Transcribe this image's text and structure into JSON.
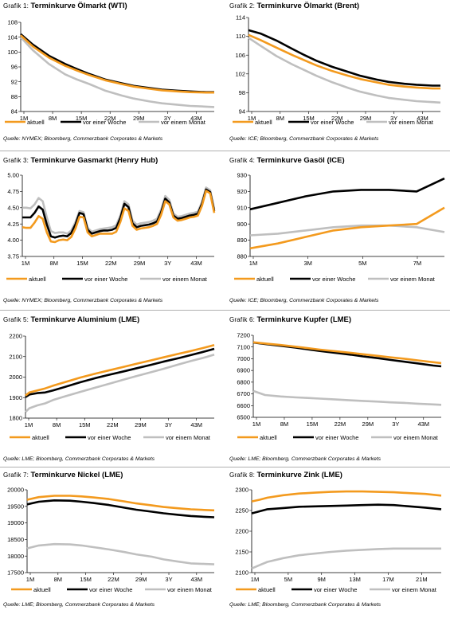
{
  "colors": {
    "aktuell": "#f39a1e",
    "woche": "#000000",
    "monat": "#bfbfbf"
  },
  "legend": {
    "aktuell": "aktuell",
    "woche": "vor einer Woche",
    "monat": "vor einem Monat"
  },
  "charts": [
    {
      "id": "chart1",
      "prefix": "Grafik 1: ",
      "title": "Terminkurve Ölmarkt (WTI)",
      "source": "Quelle: NYMEX; Bloomberg, Commerzbank Corporates & Markets",
      "x_ticks": [
        "1M",
        "8M",
        "15M",
        "22M",
        "29M",
        "3Y",
        "43M"
      ],
      "y_ticks": [
        "84",
        "88",
        "92",
        "96",
        "100",
        "104",
        "108"
      ]
    },
    {
      "id": "chart2",
      "prefix": "Grafik 2: ",
      "title": "Terminkurve Ölmarkt (Brent)",
      "source": "Quelle: ICE; Bloomberg, Commerzbank Corporates & Markets",
      "x_ticks": [
        "1M",
        "8M",
        "15M",
        "22M",
        "29M",
        "3Y",
        "43M"
      ],
      "y_ticks": [
        "94",
        "98",
        "102",
        "106",
        "110",
        "114"
      ]
    },
    {
      "id": "chart3",
      "prefix": "Grafik 3: ",
      "title": "Terminkurve Gasmarkt (Henry Hub)",
      "source": "Quelle: NYMEX; Bloomberg, Commerzbank Corporates & Markets",
      "x_ticks": [
        "1M",
        "8M",
        "15M",
        "22M",
        "29M",
        "3Y",
        "43M"
      ],
      "y_ticks": [
        "3.75",
        "4.00",
        "4.25",
        "4.50",
        "4.75",
        "5.00"
      ]
    },
    {
      "id": "chart4",
      "prefix": "Grafik 4: ",
      "title": "Terminkurve Gasöl (ICE)",
      "source": "Quelle: ICE; Bloomberg, Commerzbank Corporates & Markets",
      "x_ticks": [
        "1M",
        "3M",
        "5M",
        "7M"
      ],
      "y_ticks": [
        "880",
        "890",
        "900",
        "910",
        "920",
        "930"
      ]
    },
    {
      "id": "chart5",
      "prefix": "Grafik 5: ",
      "title": "Terminkurve Aluminium (LME)",
      "source": "Quelle: LME; Bloomberg, Commerzbank Corporates & Markets",
      "x_ticks": [
        "1M",
        "8M",
        "15M",
        "22M",
        "29M",
        "3Y",
        "43M"
      ],
      "y_ticks": [
        "1800",
        "1900",
        "2000",
        "2100",
        "2200"
      ]
    },
    {
      "id": "chart6",
      "prefix": "Grafik 6: ",
      "title": "Terminkurve Kupfer (LME)",
      "source": "Quelle: LME; Bloomberg, Commerzbank Corporates & Markets",
      "x_ticks": [
        "1M",
        "8M",
        "15M",
        "22M",
        "29M",
        "3Y",
        "43M"
      ],
      "y_ticks": [
        "6500",
        "6600",
        "6700",
        "6800",
        "6900",
        "7000",
        "7100",
        "7200"
      ]
    },
    {
      "id": "chart7",
      "prefix": "Grafik 7: ",
      "title": "Terminkurve Nickel (LME)",
      "source": "Quelle: LME; Bloomberg, Commerzbank Corporates & Markets",
      "x_ticks": [
        "1M",
        "8M",
        "15M",
        "22M",
        "29M",
        "3Y",
        "43M"
      ],
      "y_ticks": [
        "17500",
        "18000",
        "18500",
        "19000",
        "19500",
        "20000"
      ]
    },
    {
      "id": "chart8",
      "prefix": "Grafik 8: ",
      "title": "Terminkurve Zink (LME)",
      "source": "Quelle: LME; Bloomberg, Commerzbank Corporates & Markets",
      "x_ticks": [
        "1M",
        "5M",
        "9M",
        "13M",
        "17M",
        "21M"
      ],
      "y_ticks": [
        "2100",
        "2150",
        "2200",
        "2250",
        "2300"
      ]
    }
  ],
  "chart_data": [
    {
      "type": "line",
      "x": [
        1,
        4,
        8,
        12,
        15,
        18,
        22,
        26,
        29,
        33,
        36,
        40,
        43,
        47,
        49
      ],
      "ylim": [
        84,
        108
      ],
      "xlim": [
        1,
        49
      ],
      "series": [
        {
          "name": "aktuell",
          "values": [
            104.5,
            101.5,
            98.5,
            96.3,
            95,
            93.8,
            92.4,
            91.4,
            90.7,
            90.1,
            89.7,
            89.4,
            89.2,
            89.1,
            89.1
          ]
        },
        {
          "name": "vor einer Woche",
          "values": [
            104.8,
            102,
            99,
            96.8,
            95.4,
            94.1,
            92.6,
            91.6,
            90.9,
            90.3,
            89.9,
            89.6,
            89.4,
            89.2,
            89.2
          ]
        },
        {
          "name": "vor einem Monat",
          "values": [
            104,
            100.5,
            96.8,
            94,
            92.6,
            91.4,
            89.6,
            88.3,
            87.5,
            86.7,
            86.2,
            85.8,
            85.5,
            85.3,
            85.2
          ]
        }
      ]
    },
    {
      "type": "line",
      "x": [
        1,
        4,
        8,
        12,
        15,
        18,
        22,
        26,
        29,
        33,
        36,
        40,
        43,
        47,
        49
      ],
      "ylim": [
        94,
        114
      ],
      "xlim": [
        1,
        49
      ],
      "series": [
        {
          "name": "aktuell",
          "values": [
            110.3,
            109.2,
            107.6,
            106,
            104.9,
            103.8,
            102.6,
            101.6,
            100.9,
            100.2,
            99.7,
            99.3,
            99.1,
            98.9,
            98.9
          ]
        },
        {
          "name": "vor einer Woche",
          "values": [
            111.3,
            110.6,
            109.1,
            107.3,
            106,
            104.8,
            103.5,
            102.4,
            101.6,
            100.8,
            100.3,
            99.9,
            99.7,
            99.5,
            99.5
          ]
        },
        {
          "name": "vor einem Monat",
          "values": [
            109.7,
            108,
            105.8,
            104,
            102.8,
            101.6,
            100.2,
            99,
            98.2,
            97.4,
            96.9,
            96.5,
            96.2,
            96,
            95.9
          ]
        }
      ]
    },
    {
      "type": "line",
      "x": [
        1,
        2,
        3,
        4,
        5,
        6,
        7,
        8,
        9,
        10,
        11,
        12,
        13,
        14,
        15,
        16,
        17,
        18,
        19,
        20,
        21,
        22,
        23,
        24,
        25,
        26,
        27,
        28,
        29,
        30,
        31,
        32,
        33,
        34,
        35,
        36,
        37,
        38,
        39,
        40,
        41,
        42,
        43,
        44,
        45,
        46,
        47,
        48
      ],
      "ylim": [
        3.75,
        5
      ],
      "xlim": [
        1,
        48
      ],
      "series": [
        {
          "name": "aktuell",
          "values": [
            4.2,
            4.19,
            4.19,
            4.27,
            4.37,
            4.33,
            4.12,
            3.98,
            3.97,
            4.0,
            4.01,
            4.0,
            4.05,
            4.18,
            4.36,
            4.35,
            4.12,
            4.06,
            4.08,
            4.1,
            4.1,
            4.1,
            4.1,
            4.13,
            4.28,
            4.49,
            4.45,
            4.22,
            4.16,
            4.18,
            4.19,
            4.2,
            4.22,
            4.25,
            4.39,
            4.6,
            4.55,
            4.35,
            4.3,
            4.31,
            4.33,
            4.35,
            4.36,
            4.38,
            4.53,
            4.76,
            4.72,
            4.42
          ]
        },
        {
          "name": "vor einer Woche",
          "values": [
            4.35,
            4.35,
            4.35,
            4.42,
            4.52,
            4.47,
            4.24,
            4.06,
            4.04,
            4.06,
            4.07,
            4.06,
            4.11,
            4.24,
            4.42,
            4.4,
            4.16,
            4.1,
            4.12,
            4.14,
            4.15,
            4.15,
            4.16,
            4.19,
            4.34,
            4.56,
            4.51,
            4.26,
            4.2,
            4.22,
            4.23,
            4.24,
            4.26,
            4.29,
            4.43,
            4.64,
            4.58,
            4.38,
            4.33,
            4.34,
            4.36,
            4.38,
            4.39,
            4.41,
            4.56,
            4.78,
            4.74,
            4.45
          ]
        },
        {
          "name": "vor einem Monat",
          "values": [
            4.5,
            4.5,
            4.49,
            4.55,
            4.65,
            4.6,
            4.35,
            4.14,
            4.11,
            4.12,
            4.12,
            4.1,
            4.15,
            4.28,
            4.45,
            4.43,
            4.19,
            4.13,
            4.15,
            4.17,
            4.18,
            4.19,
            4.2,
            4.23,
            4.38,
            4.6,
            4.55,
            4.3,
            4.24,
            4.26,
            4.27,
            4.28,
            4.3,
            4.33,
            4.47,
            4.68,
            4.62,
            4.41,
            4.36,
            4.37,
            4.39,
            4.41,
            4.42,
            4.44,
            4.59,
            4.81,
            4.77,
            4.48
          ]
        }
      ]
    },
    {
      "type": "line",
      "x": [
        1,
        2,
        3,
        4,
        5,
        6,
        7,
        8
      ],
      "ylim": [
        880,
        930
      ],
      "xlim": [
        1,
        8
      ],
      "series": [
        {
          "name": "aktuell",
          "values": [
            885,
            888,
            892,
            896,
            898,
            899,
            900,
            910
          ]
        },
        {
          "name": "vor einer Woche",
          "values": [
            909,
            913,
            917,
            920,
            921,
            921,
            920,
            928
          ]
        },
        {
          "name": "vor einem Monat",
          "values": [
            893,
            894,
            896,
            898,
            899,
            899,
            898,
            895
          ]
        }
      ]
    },
    {
      "type": "line",
      "x": [
        1,
        2,
        4,
        6,
        8,
        11,
        15,
        19,
        22,
        26,
        29,
        33,
        36,
        40,
        43,
        47,
        49
      ],
      "ylim": [
        1800,
        2200
      ],
      "xlim": [
        1,
        49
      ],
      "series": [
        {
          "name": "aktuell",
          "values": [
            1910,
            1925,
            1935,
            1945,
            1958,
            1975,
            1998,
            2018,
            2032,
            2050,
            2064,
            2082,
            2096,
            2114,
            2127,
            2146,
            2156
          ]
        },
        {
          "name": "vor einer Woche",
          "values": [
            1902,
            1915,
            1922,
            1925,
            1935,
            1952,
            1975,
            1996,
            2010,
            2028,
            2042,
            2060,
            2075,
            2093,
            2107,
            2127,
            2138
          ]
        },
        {
          "name": "vor einem Monat",
          "values": [
            1830,
            1848,
            1862,
            1872,
            1888,
            1906,
            1928,
            1950,
            1966,
            1988,
            2004,
            2024,
            2040,
            2062,
            2078,
            2098,
            2110
          ]
        }
      ]
    },
    {
      "type": "line",
      "x": [
        1,
        4,
        8,
        12,
        15,
        18,
        22,
        26,
        29,
        33,
        36,
        40,
        43,
        47,
        49
      ],
      "ylim": [
        6500,
        7200
      ],
      "xlim": [
        1,
        49
      ],
      "series": [
        {
          "name": "aktuell",
          "values": [
            7140,
            7130,
            7117,
            7102,
            7090,
            7078,
            7064,
            7050,
            7038,
            7024,
            7012,
            6998,
            6986,
            6970,
            6963
          ]
        },
        {
          "name": "vor einer Woche",
          "values": [
            7138,
            7125,
            7110,
            7094,
            7080,
            7066,
            7050,
            7034,
            7020,
            7004,
            6990,
            6973,
            6960,
            6942,
            6935
          ]
        },
        {
          "name": "vor einem Monat",
          "values": [
            6725,
            6690,
            6678,
            6670,
            6665,
            6660,
            6652,
            6645,
            6640,
            6634,
            6628,
            6622,
            6616,
            6610,
            6607
          ]
        }
      ]
    },
    {
      "type": "line",
      "x": [
        1,
        4,
        8,
        12,
        15,
        18,
        22,
        26,
        29,
        33,
        36,
        40,
        43,
        47,
        49
      ],
      "ylim": [
        17500,
        20000
      ],
      "xlim": [
        1,
        49
      ],
      "series": [
        {
          "name": "aktuell",
          "values": [
            19700,
            19780,
            19820,
            19820,
            19800,
            19770,
            19720,
            19650,
            19590,
            19530,
            19480,
            19440,
            19410,
            19390,
            19380
          ]
        },
        {
          "name": "vor einer Woche",
          "values": [
            19560,
            19640,
            19680,
            19670,
            19640,
            19600,
            19540,
            19460,
            19400,
            19340,
            19290,
            19240,
            19210,
            19180,
            19170
          ]
        },
        {
          "name": "vor einem Monat",
          "values": [
            18230,
            18320,
            18360,
            18350,
            18320,
            18270,
            18200,
            18120,
            18050,
            17980,
            17900,
            17830,
            17780,
            17760,
            17750
          ]
        }
      ]
    },
    {
      "type": "line",
      "x": [
        1,
        2,
        3,
        5,
        7,
        9,
        11,
        13,
        15,
        17,
        19,
        21,
        23,
        25
      ],
      "ylim": [
        2100,
        2300
      ],
      "xlim": [
        1,
        25
      ],
      "series": [
        {
          "name": "aktuell",
          "values": [
            2272,
            2276,
            2281,
            2287,
            2291,
            2293,
            2295,
            2296,
            2296,
            2295,
            2294,
            2292,
            2290,
            2286
          ]
        },
        {
          "name": "vor einer Woche",
          "values": [
            2243,
            2248,
            2253,
            2256,
            2259,
            2260,
            2261,
            2262,
            2263,
            2264,
            2263,
            2260,
            2257,
            2253
          ]
        },
        {
          "name": "vor einem Monat",
          "values": [
            2110,
            2118,
            2126,
            2135,
            2142,
            2146,
            2150,
            2153,
            2155,
            2157,
            2158,
            2158,
            2158,
            2158
          ]
        }
      ]
    }
  ]
}
